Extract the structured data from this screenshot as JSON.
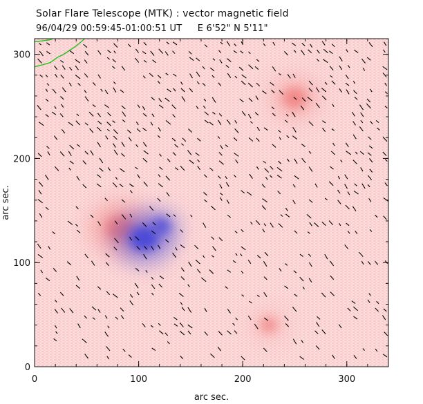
{
  "chart_data": {
    "type": "vector_magnetogram",
    "title": "Solar Flare Telescope (MTK) : vector magnetic field",
    "date_time": "96/04/29   00:59:45-01:00:51 UT",
    "position": "E 6'52\"   N 5'11\"",
    "xlabel": "arc sec.",
    "ylabel": "arc sec.",
    "xlim": [
      0,
      340
    ],
    "ylim": [
      0,
      315
    ],
    "xticks": [
      0,
      100,
      200,
      300
    ],
    "yticks": [
      0,
      100,
      200,
      300
    ],
    "polarity_colors": {
      "positive": "#f08080",
      "negative": "#4a4ad8",
      "limb_contour": "#1fc21f",
      "vector": "#000000"
    },
    "features": [
      {
        "name": "positive-spot",
        "polarity": "positive",
        "x": 82,
        "y": 133,
        "strength": 1.0
      },
      {
        "name": "negative-spot",
        "polarity": "negative",
        "x": 105,
        "y": 123,
        "strength": 1.0
      },
      {
        "name": "negative-arc",
        "polarity": "negative",
        "x": 122,
        "y": 135,
        "strength": 0.45
      },
      {
        "name": "positive-knot",
        "polarity": "positive",
        "x": 250,
        "y": 258,
        "strength": 0.7
      },
      {
        "name": "positive-patch",
        "polarity": "positive",
        "x": 225,
        "y": 40,
        "strength": 0.35
      }
    ],
    "limb_contour": [
      [
        0,
        288
      ],
      [
        8,
        290
      ],
      [
        15,
        292
      ],
      [
        22,
        297
      ],
      [
        28,
        300
      ],
      [
        34,
        304
      ],
      [
        40,
        308
      ],
      [
        46,
        313
      ],
      [
        48,
        315
      ]
    ],
    "limb_contour_top": [
      [
        0,
        312
      ],
      [
        8,
        313
      ],
      [
        15,
        314
      ],
      [
        18,
        315
      ]
    ]
  }
}
